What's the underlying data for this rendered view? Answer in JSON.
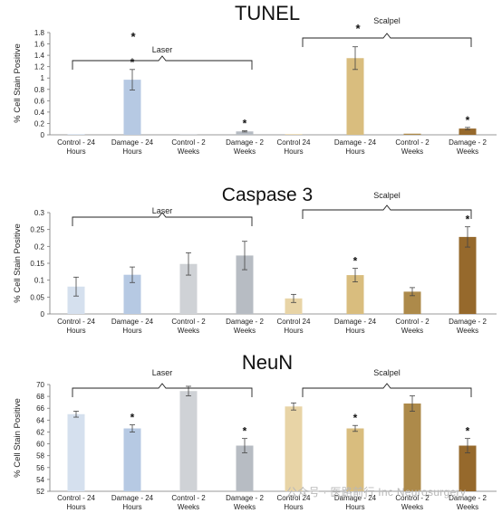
{
  "chart_data": [
    {
      "type": "bar",
      "title": "TUNEL",
      "ylabel": "% Cell Stain Positive",
      "ylim": [
        0,
        1.8
      ],
      "yticks": [
        "0",
        "0.2",
        "0.4",
        "0.6",
        "0.8",
        "1",
        "1.2",
        "1.4",
        "1.6",
        "1.8"
      ],
      "categories": [
        "Control - 24 Hours",
        "Damage - 24 Hours",
        "Control - 2 Weeks",
        "Damage - 2 Weeks",
        "Control 24 Hours",
        "Damage - 24 Hours",
        "Control - 2 Weeks",
        "Damage - 2 Weeks"
      ],
      "values": [
        0.01,
        0.97,
        0.01,
        0.06,
        0.01,
        1.35,
        0.02,
        0.11
      ],
      "errors": [
        0.0,
        0.18,
        0.0,
        0.01,
        0.0,
        0.2,
        0.0,
        0.02
      ],
      "colors": [
        "#d5e0ee",
        "#b6c9e3",
        "#cfd2d6",
        "#b7bcc3",
        "#e8d4a6",
        "#d9bd7e",
        "#ad8a4a",
        "#96692c"
      ],
      "significant": [
        "",
        "*",
        "",
        "*",
        "",
        "",
        "",
        "*"
      ],
      "groups": [
        {
          "label": "Laser",
          "mark": "*"
        },
        {
          "label": "Scalpel",
          "mark": "*"
        }
      ]
    },
    {
      "type": "bar",
      "title": "Caspase 3",
      "ylabel": "% Cell Stain Positive",
      "ylim": [
        0,
        0.3
      ],
      "yticks": [
        "0",
        "0.05",
        "0.1",
        "0.15",
        "0.2",
        "0.25",
        "0.3"
      ],
      "categories": [
        "Control - 24 Hours",
        "Damage - 24 Hours",
        "Control - 2 Weeks",
        "Damage - 2 Weeks",
        "Control 24 Hours",
        "Damage - 24 Hours",
        "Control - 2 Weeks",
        "Damage - 2 Weeks"
      ],
      "values": [
        0.081,
        0.116,
        0.148,
        0.173,
        0.046,
        0.115,
        0.066,
        0.228
      ],
      "errors": [
        0.028,
        0.023,
        0.033,
        0.042,
        0.012,
        0.02,
        0.012,
        0.03
      ],
      "colors": [
        "#d5e0ee",
        "#b6c9e3",
        "#cfd2d6",
        "#b7bcc3",
        "#e8d4a6",
        "#d9bd7e",
        "#ad8a4a",
        "#96692c"
      ],
      "significant": [
        "",
        "",
        "",
        "",
        "",
        "*",
        "",
        "*"
      ],
      "groups": [
        {
          "label": "Laser",
          "mark": ""
        },
        {
          "label": "Scalpel",
          "mark": ""
        }
      ]
    },
    {
      "type": "bar",
      "title": "NeuN",
      "ylabel": "% Cell Stain Positive",
      "ylim": [
        52,
        70
      ],
      "yticks": [
        "52",
        "54",
        "56",
        "58",
        "60",
        "62",
        "64",
        "66",
        "68",
        "70"
      ],
      "categories": [
        "Control - 24 Hours",
        "Damage - 24 Hours",
        "Control - 2 Weeks",
        "Damage - 2 Weeks",
        "Control 24 Hours",
        "Damage - 24 Hours",
        "Control - 2 Weeks",
        "Damage - 2 Weeks"
      ],
      "values": [
        65.0,
        62.6,
        68.9,
        59.7,
        66.3,
        62.6,
        66.8,
        59.7
      ],
      "errors": [
        0.5,
        0.6,
        0.8,
        1.2,
        0.6,
        0.5,
        1.3,
        1.2
      ],
      "colors": [
        "#d5e0ee",
        "#b6c9e3",
        "#cfd2d6",
        "#b7bcc3",
        "#e8d4a6",
        "#d9bd7e",
        "#ad8a4a",
        "#96692c"
      ],
      "significant": [
        "",
        "*",
        "",
        "*",
        "",
        "*",
        "",
        "*"
      ],
      "groups": [
        {
          "label": "Laser",
          "mark": ""
        },
        {
          "label": "Scalpel",
          "mark": ""
        }
      ]
    }
  ],
  "watermark": "公众号 · 医路前行 Inc Neurosurgery"
}
